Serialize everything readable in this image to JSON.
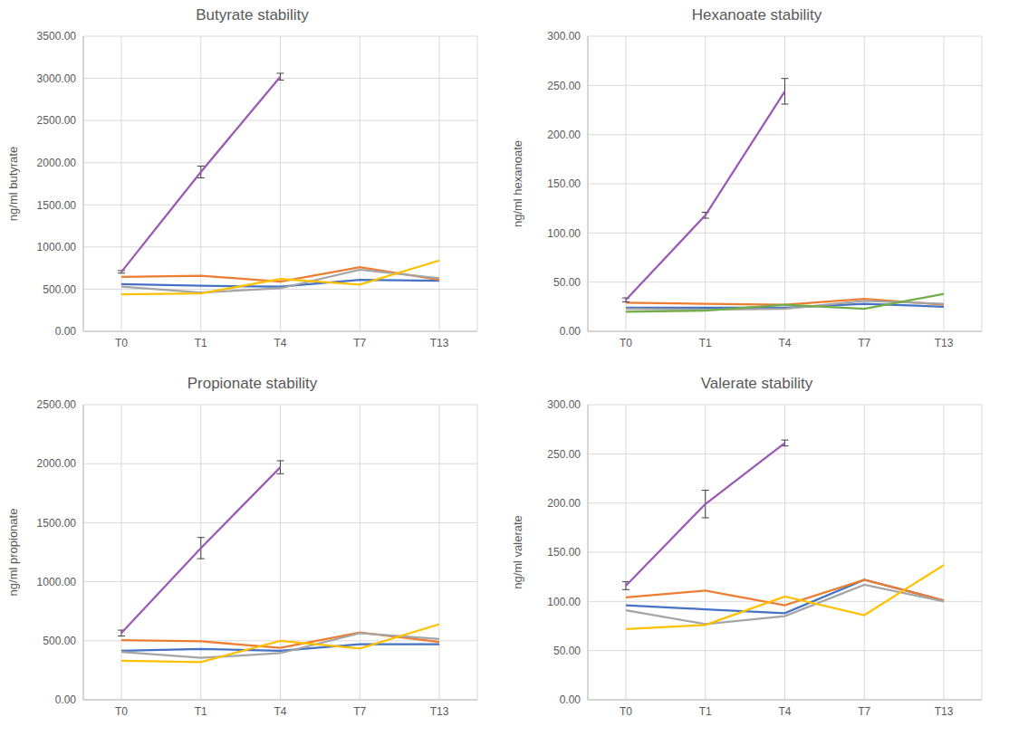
{
  "chart_data": [
    {
      "type": "line",
      "title": "Butyrate stability",
      "ylabel": "ng/ml butyrate",
      "categories": [
        "T0",
        "T1",
        "T4",
        "T7",
        "T13"
      ],
      "ylim": [
        0,
        3500
      ],
      "yticks": [
        {
          "value": 0,
          "label": "0.00"
        },
        {
          "value": 500,
          "label": "500.00"
        },
        {
          "value": 1000,
          "label": "1000.00"
        },
        {
          "value": 1500,
          "label": "1500.00"
        },
        {
          "value": 2000,
          "label": "2000.00"
        },
        {
          "value": 2500,
          "label": "2500.00"
        },
        {
          "value": 3000,
          "label": "3000.00"
        },
        {
          "value": 3500,
          "label": "3500.00"
        }
      ],
      "grid": true,
      "series": [
        {
          "color": "#4472C4",
          "values": [
            560,
            540,
            530,
            610,
            600
          ]
        },
        {
          "color": "#ED7D31",
          "values": [
            645,
            660,
            590,
            760,
            610
          ]
        },
        {
          "color": "#A5A5A5",
          "values": [
            530,
            460,
            510,
            730,
            630
          ]
        },
        {
          "color": "#FFC000",
          "values": [
            440,
            450,
            620,
            555,
            840
          ]
        },
        {
          "color": "#9B59B6",
          "values": [
            705,
            1890,
            3020,
            null,
            null
          ],
          "errors": [
            15,
            70,
            40,
            null,
            null
          ]
        }
      ]
    },
    {
      "type": "line",
      "title": "Hexanoate stability",
      "ylabel": "ng/ml hexanoate",
      "categories": [
        "T0",
        "T1",
        "T4",
        "T7",
        "T13"
      ],
      "ylim": [
        0,
        300
      ],
      "yticks": [
        {
          "value": 0,
          "label": "0.00"
        },
        {
          "value": 50,
          "label": "50.00"
        },
        {
          "value": 100,
          "label": "100.00"
        },
        {
          "value": 150,
          "label": "150.00"
        },
        {
          "value": 200,
          "label": "200.00"
        },
        {
          "value": 250,
          "label": "250.00"
        },
        {
          "value": 300,
          "label": "300.00"
        }
      ],
      "grid": true,
      "series": [
        {
          "color": "#4472C4",
          "values": [
            24,
            24,
            24,
            28,
            25
          ]
        },
        {
          "color": "#ED7D31",
          "values": [
            29,
            28,
            27,
            33,
            27
          ]
        },
        {
          "color": "#A5A5A5",
          "values": [
            23,
            22,
            23,
            31,
            28
          ]
        },
        {
          "color": "#70AD47",
          "values": [
            20,
            21,
            27,
            23,
            38
          ]
        },
        {
          "color": "#9B59B6",
          "values": [
            32,
            118,
            244,
            null,
            null
          ],
          "errors": [
            2,
            3,
            13,
            null,
            null
          ]
        }
      ]
    },
    {
      "type": "line",
      "title": "Propionate stability",
      "ylabel": "ng/ml propionate",
      "categories": [
        "T0",
        "T1",
        "T4",
        "T7",
        "T13"
      ],
      "ylim": [
        0,
        2500
      ],
      "yticks": [
        {
          "value": 0,
          "label": "0.00"
        },
        {
          "value": 500,
          "label": "500.00"
        },
        {
          "value": 1000,
          "label": "1000.00"
        },
        {
          "value": 1500,
          "label": "1500.00"
        },
        {
          "value": 2000,
          "label": "2000.00"
        },
        {
          "value": 2500,
          "label": "2500.00"
        }
      ],
      "grid": true,
      "series": [
        {
          "color": "#4472C4",
          "values": [
            415,
            430,
            415,
            470,
            470
          ]
        },
        {
          "color": "#ED7D31",
          "values": [
            505,
            495,
            440,
            570,
            490
          ]
        },
        {
          "color": "#A5A5A5",
          "values": [
            405,
            355,
            395,
            565,
            515
          ]
        },
        {
          "color": "#FFC000",
          "values": [
            330,
            320,
            500,
            435,
            640
          ]
        },
        {
          "color": "#9B59B6",
          "values": [
            565,
            1285,
            1970,
            null,
            null
          ],
          "errors": [
            25,
            90,
            55,
            null,
            null
          ]
        }
      ]
    },
    {
      "type": "line",
      "title": "Valerate stability",
      "ylabel": "ng/ml valerate",
      "categories": [
        "T0",
        "T1",
        "T4",
        "T7",
        "T13"
      ],
      "ylim": [
        0,
        300
      ],
      "yticks": [
        {
          "value": 0,
          "label": "0.00"
        },
        {
          "value": 50,
          "label": "50.00"
        },
        {
          "value": 100,
          "label": "100.00"
        },
        {
          "value": 150,
          "label": "150.00"
        },
        {
          "value": 200,
          "label": "200.00"
        },
        {
          "value": 250,
          "label": "250.00"
        },
        {
          "value": 300,
          "label": "300.00"
        }
      ],
      "grid": true,
      "series": [
        {
          "color": "#4472C4",
          "values": [
            96,
            92,
            88,
            122,
            101
          ]
        },
        {
          "color": "#ED7D31",
          "values": [
            104,
            111,
            96,
            122,
            101
          ]
        },
        {
          "color": "#A5A5A5",
          "values": [
            91,
            77,
            85,
            117,
            100
          ]
        },
        {
          "color": "#FFC000",
          "values": [
            72,
            76,
            105,
            86,
            137
          ]
        },
        {
          "color": "#9B59B6",
          "values": [
            116,
            199,
            261,
            null,
            null
          ],
          "errors": [
            4,
            14,
            3,
            null,
            null
          ]
        }
      ]
    }
  ]
}
